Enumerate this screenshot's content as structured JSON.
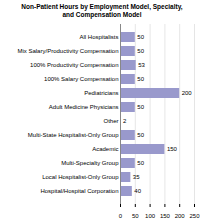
{
  "chart_data": {
    "type": "bar",
    "title": "Non-Patient Hours by Employment Model, Specialty,\nand Compensation Model",
    "orientation": "horizontal",
    "categories": [
      "Hospital/Hospital Corporation",
      "Local Hospitalist-Only Group",
      "Multi-Specialty Group",
      "Academic",
      "Multi-State Hospitalist-Only Group",
      "Other",
      "Adult Medicine Physicians",
      "Pediatricians",
      "100% Salary Compensation",
      "100% Productivity Compensation",
      "Mix Salary/Productivity Compensation",
      "All Hospitalists"
    ],
    "values": [
      40,
      35,
      50,
      150,
      50,
      2,
      50,
      200,
      50,
      53,
      50,
      50
    ],
    "color": "#9999cc",
    "xlim": [
      0,
      250
    ],
    "xticks": [
      0,
      50,
      100,
      150,
      200,
      250
    ],
    "grid": true,
    "data_labels": true
  }
}
